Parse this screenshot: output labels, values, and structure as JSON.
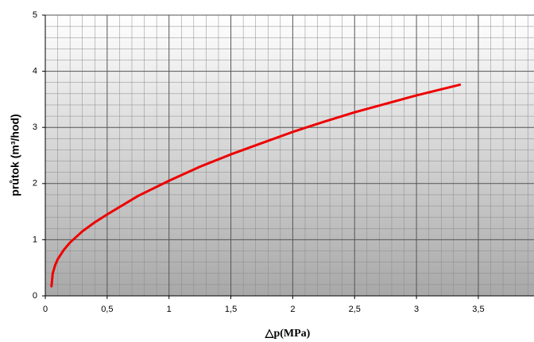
{
  "chart_data": {
    "type": "line",
    "x_label": "△p(MPa)",
    "y_label": "průtok (m³/hod)",
    "series": [
      {
        "color": "#ee0000",
        "x": [
          0.05,
          0.06,
          0.08,
          0.1,
          0.15,
          0.2,
          0.3,
          0.4,
          0.5,
          0.75,
          1,
          1.25,
          1.5,
          1.75,
          2,
          2.25,
          2.5,
          2.75,
          3,
          3.35
        ],
        "values": [
          0.17,
          0.4,
          0.55,
          0.65,
          0.82,
          0.95,
          1.15,
          1.31,
          1.45,
          1.78,
          2.05,
          2.3,
          2.52,
          2.72,
          2.92,
          3.1,
          3.27,
          3.42,
          3.57,
          3.76
        ]
      }
    ],
    "xlim": [
      0,
      3.95
    ],
    "xticks": [
      0,
      {
        "value": 0.5,
        "label": "0,5"
      },
      1,
      {
        "value": 1.5,
        "label": "1,5"
      },
      2,
      {
        "value": 2.5,
        "label": "2,5"
      },
      3,
      {
        "value": 3.5,
        "label": "3,5"
      }
    ],
    "ylim": [
      0,
      5
    ],
    "yticks": [
      0,
      1,
      2,
      3,
      4,
      5
    ],
    "grid": true
  }
}
